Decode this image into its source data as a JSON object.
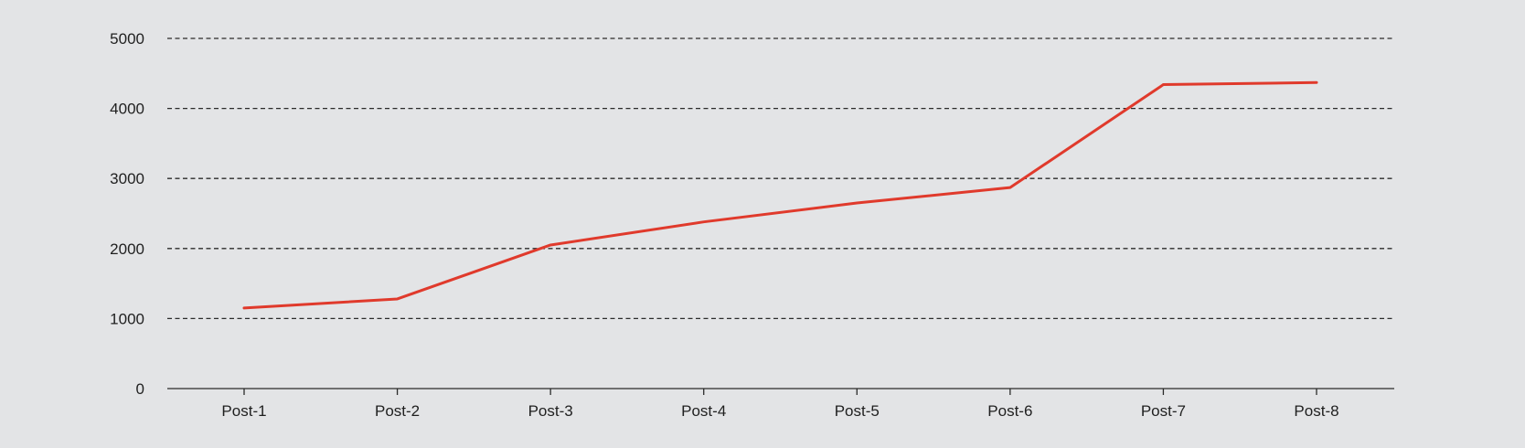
{
  "chart_data": {
    "type": "line",
    "title": "",
    "xlabel": "",
    "ylabel": "",
    "categories": [
      "Post-1",
      "Post-2",
      "Post-3",
      "Post-4",
      "Post-5",
      "Post-6",
      "Post-7",
      "Post-8"
    ],
    "series": [
      {
        "values": [
          1150,
          1280,
          2050,
          2380,
          2650,
          2870,
          4340,
          4370
        ],
        "color": "#e03a2c"
      }
    ],
    "yticks": [
      0,
      1000,
      2000,
      3000,
      4000,
      5000
    ],
    "ylim": [
      0,
      5000
    ],
    "grid": true,
    "legend": "none"
  }
}
